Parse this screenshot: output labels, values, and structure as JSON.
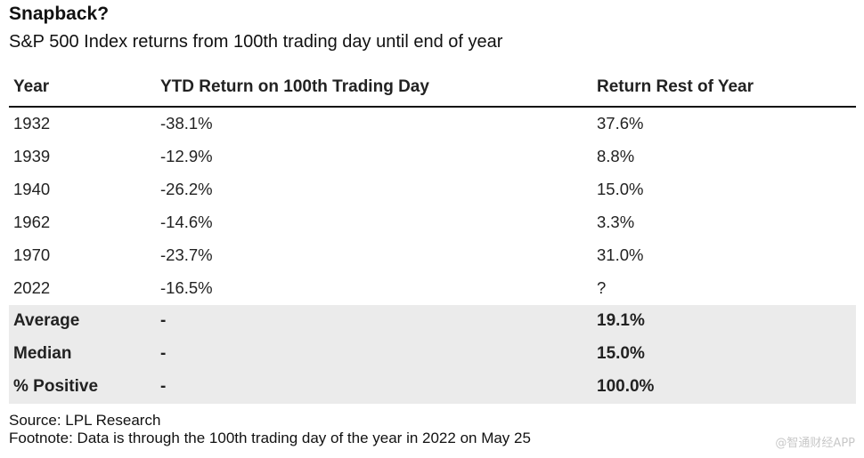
{
  "title": "Snapback?",
  "subtitle": "S&P 500 Index returns from 100th trading day until end of year",
  "table": {
    "headers": [
      "Year",
      "YTD Return on 100th Trading Day",
      "Return Rest of Year"
    ],
    "rows": [
      [
        "1932",
        "-38.1%",
        "37.6%"
      ],
      [
        "1939",
        "-12.9%",
        "8.8%"
      ],
      [
        "1940",
        "-26.2%",
        "15.0%"
      ],
      [
        "1962",
        "-14.6%",
        "3.3%"
      ],
      [
        "1970",
        "-23.7%",
        "31.0%"
      ],
      [
        "2022",
        "-16.5%",
        "?"
      ]
    ],
    "summary_rows": [
      [
        "Average",
        "-",
        "19.1%"
      ],
      [
        "Median",
        "-",
        "15.0%"
      ],
      [
        "% Positive",
        "-",
        "100.0%"
      ]
    ]
  },
  "footer": {
    "source": "Source: LPL Research",
    "footnote": "Footnote: Data is through the 100th trading day of the year in 2022 on May 25"
  },
  "watermark": "@智通财经APP",
  "colors": {
    "summary_background": "#ebebeb",
    "header_rule": "#111111"
  }
}
